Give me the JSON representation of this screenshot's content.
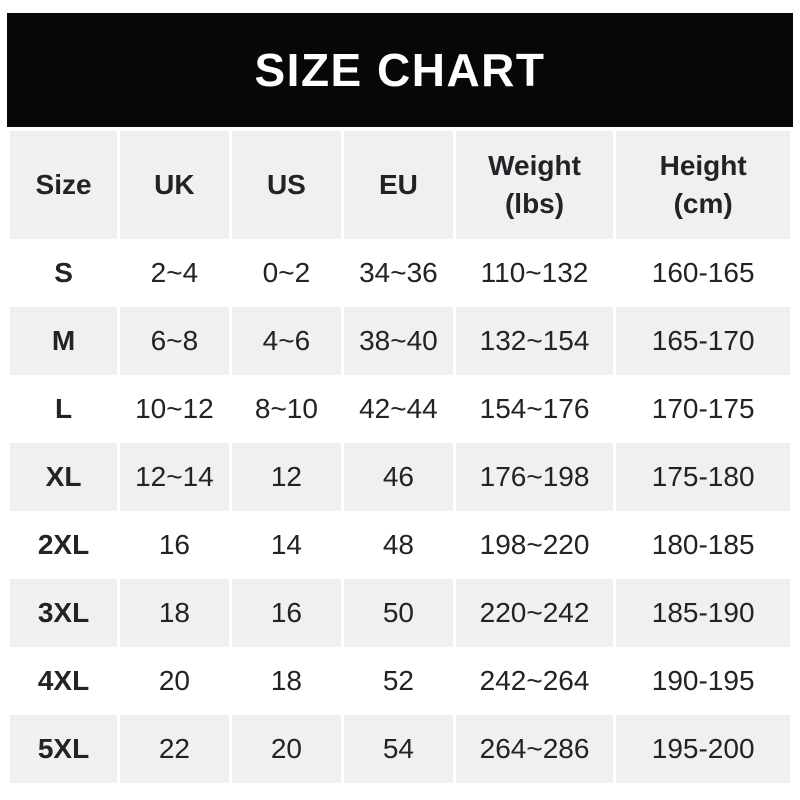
{
  "banner": {
    "title": "SIZE CHART",
    "bg_color": "#070707",
    "text_color": "#ffffff"
  },
  "table": {
    "columns": [
      {
        "key": "size",
        "label": "Size"
      },
      {
        "key": "uk",
        "label": "UK"
      },
      {
        "key": "us",
        "label": "US"
      },
      {
        "key": "eu",
        "label": "EU"
      },
      {
        "key": "weight",
        "label": "Weight\n(lbs)"
      },
      {
        "key": "height",
        "label": "Height\n(cm)"
      }
    ],
    "rows": [
      {
        "size": "S",
        "uk": "2~4",
        "us": "0~2",
        "eu": "34~36",
        "weight": "110~132",
        "height": "160-165"
      },
      {
        "size": "M",
        "uk": "6~8",
        "us": "4~6",
        "eu": "38~40",
        "weight": "132~154",
        "height": "165-170"
      },
      {
        "size": "L",
        "uk": "10~12",
        "us": "8~10",
        "eu": "42~44",
        "weight": "154~176",
        "height": "170-175"
      },
      {
        "size": "XL",
        "uk": "12~14",
        "us": "12",
        "eu": "46",
        "weight": "176~198",
        "height": "175-180"
      },
      {
        "size": "2XL",
        "uk": "16",
        "us": "14",
        "eu": "48",
        "weight": "198~220",
        "height": "180-185"
      },
      {
        "size": "3XL",
        "uk": "18",
        "us": "16",
        "eu": "50",
        "weight": "220~242",
        "height": "185-190"
      },
      {
        "size": "4XL",
        "uk": "20",
        "us": "18",
        "eu": "52",
        "weight": "242~264",
        "height": "190-195"
      },
      {
        "size": "5XL",
        "uk": "22",
        "us": "20",
        "eu": "54",
        "weight": "264~286",
        "height": "195-200"
      }
    ],
    "colors": {
      "stripe_bg": "#f0f0f1",
      "plain_bg": "#ffffff",
      "text": "#232327"
    }
  },
  "chart_data": {
    "type": "table",
    "title": "SIZE CHART",
    "columns": [
      "Size",
      "UK",
      "US",
      "EU",
      "Weight (lbs)",
      "Height (cm)"
    ],
    "rows": [
      [
        "S",
        "2~4",
        "0~2",
        "34~36",
        "110~132",
        "160-165"
      ],
      [
        "M",
        "6~8",
        "4~6",
        "38~40",
        "132~154",
        "165-170"
      ],
      [
        "L",
        "10~12",
        "8~10",
        "42~44",
        "154~176",
        "170-175"
      ],
      [
        "XL",
        "12~14",
        "12",
        "46",
        "176~198",
        "175-180"
      ],
      [
        "2XL",
        "16",
        "14",
        "48",
        "198~220",
        "180-185"
      ],
      [
        "3XL",
        "18",
        "16",
        "50",
        "220~242",
        "185-190"
      ],
      [
        "4XL",
        "20",
        "18",
        "52",
        "242~264",
        "190-195"
      ],
      [
        "5XL",
        "22",
        "20",
        "54",
        "264~286",
        "195-200"
      ]
    ],
    "layout": {
      "header_banner": true,
      "zebra_striping": "even rows white, odd rows light gray (S=white, M=gray, ...)",
      "column_dividers": "3px white gaps"
    }
  }
}
